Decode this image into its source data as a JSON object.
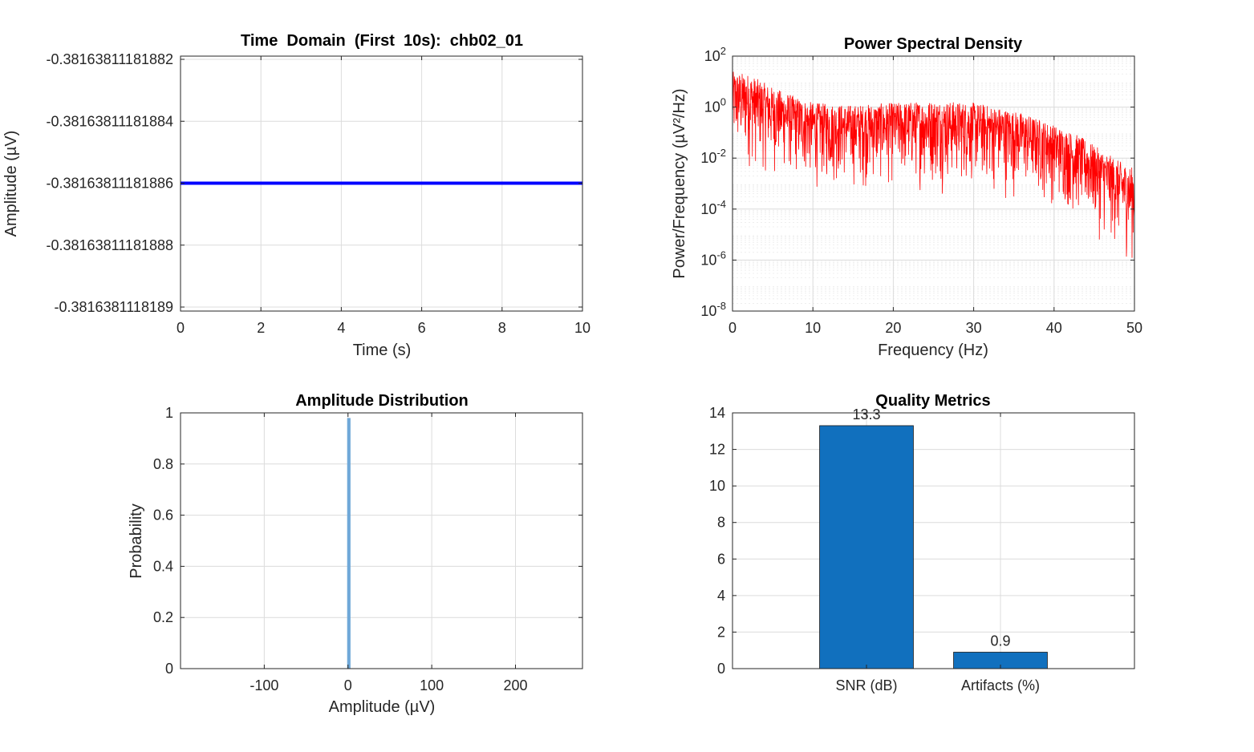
{
  "chart_data": [
    {
      "type": "line",
      "title": "Time  Domain  (First  10s):  chb02_01",
      "xlabel": "Time (s)",
      "ylabel": "Amplitude (µV)",
      "xlim": [
        0,
        10
      ],
      "xticks": [
        "0",
        "2",
        "4",
        "6",
        "8",
        "10"
      ],
      "ylim": [
        -0.3816381118189,
        -0.38163811181882
      ],
      "yticks": [
        "-0.38163811181882",
        "-0.38163811181884",
        "-0.38163811181886",
        "-0.38163811181888",
        "-0.3816381118189"
      ],
      "grid": true,
      "series": [
        {
          "x": [
            0,
            10
          ],
          "y": [
            -0.38163811181886,
            -0.38163811181886
          ],
          "color": "#0000ff"
        }
      ]
    },
    {
      "type": "line",
      "title": "Power Spectral Density",
      "xlabel": "Frequency (Hz)",
      "ylabel": "Power/Frequency (µV²/Hz)",
      "xlim": [
        0,
        50
      ],
      "xticks": [
        "0",
        "10",
        "20",
        "30",
        "40",
        "50"
      ],
      "yscale": "log",
      "ylim": [
        1e-08,
        100
      ],
      "yticks": [
        {
          "base": "10",
          "exp": "2"
        },
        {
          "base": "10",
          "exp": "0"
        },
        {
          "base": "10",
          "exp": "-2"
        },
        {
          "base": "10",
          "exp": "-4"
        },
        {
          "base": "10",
          "exp": "-6"
        },
        {
          "base": "10",
          "exp": "-8"
        }
      ],
      "grid": true,
      "color": "#ff0000",
      "envelope": {
        "freq": [
          0,
          2,
          5,
          8,
          10,
          15,
          20,
          25,
          30,
          33,
          36,
          40,
          43,
          46,
          48,
          50
        ],
        "upper": [
          25,
          20,
          6,
          2.5,
          1.5,
          1.2,
          1.5,
          1.8,
          1.5,
          1.0,
          0.6,
          0.2,
          0.08,
          0.02,
          0.008,
          0.004
        ],
        "lower": [
          0.001,
          0.001,
          0.0006,
          0.0003,
          0.0002,
          0.0002,
          0.0002,
          0.0002,
          0.0002,
          0.0001,
          0.0001,
          5e-05,
          1e-05,
          2e-06,
          5e-07,
          2e-07
        ]
      }
    },
    {
      "type": "bar",
      "title": "Amplitude Distribution",
      "xlabel": "Amplitude (µV)",
      "ylabel": "Probability",
      "xlim": [
        -200,
        280
      ],
      "xticks": [
        "-100",
        "0",
        "100",
        "200"
      ],
      "ylim": [
        0,
        1
      ],
      "yticks": [
        "0",
        "0.2",
        "0.4",
        "0.6",
        "0.8",
        "1"
      ],
      "grid": true,
      "bins": [
        {
          "x": -1,
          "width": 4,
          "value": 0.98
        }
      ],
      "color": "#6fa8d8"
    },
    {
      "type": "bar",
      "title": "Quality Metrics",
      "categories": [
        "SNR (dB)",
        "Artifacts (%)"
      ],
      "values": [
        13.3,
        0.9
      ],
      "data_labels": [
        "13.3",
        "0.9"
      ],
      "ylim": [
        0,
        14
      ],
      "yticks": [
        "0",
        "2",
        "4",
        "6",
        "8",
        "10",
        "12",
        "14"
      ],
      "grid": true,
      "color": "#1170be"
    }
  ]
}
